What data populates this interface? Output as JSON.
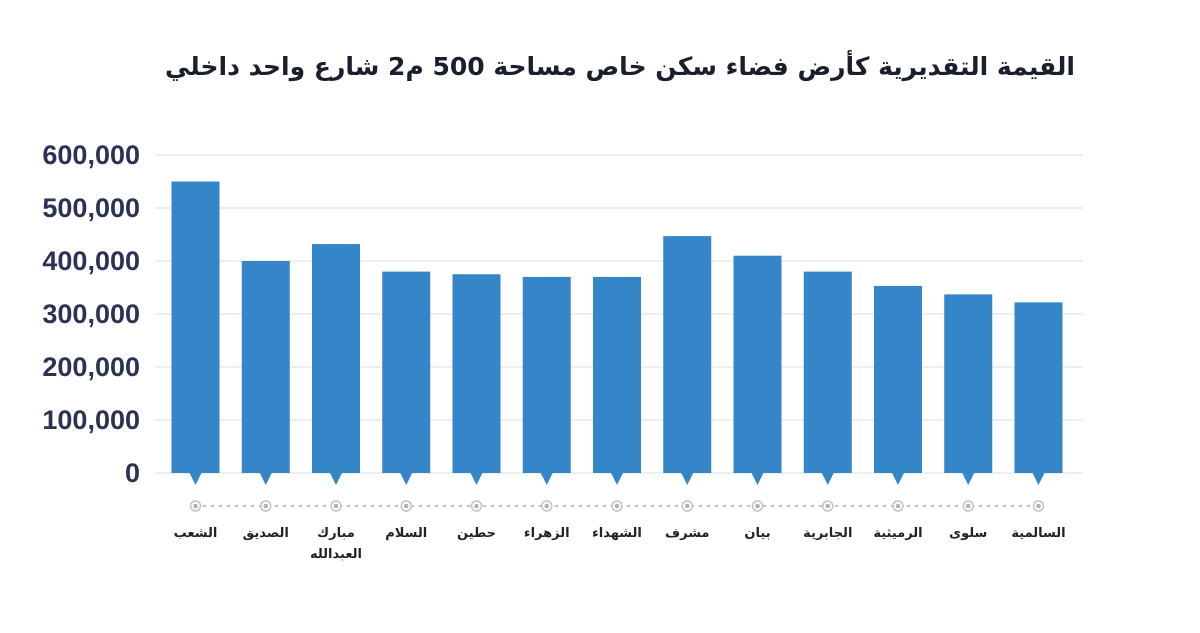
{
  "chart_data": {
    "type": "bar",
    "title": "القيمة التقديرية كأرض فضاء سكن خاص مساحة 500 م2 شارع واحد داخلي",
    "xlabel": "",
    "ylabel": "",
    "ylim": [
      0,
      600000
    ],
    "yticks": [
      "0",
      "100,000",
      "200,000",
      "300,000",
      "400,000",
      "500,000",
      "600,000"
    ],
    "categories": [
      [
        "الشعب"
      ],
      [
        "الصديق"
      ],
      [
        "مبارك",
        "العبدالله"
      ],
      [
        "السلام"
      ],
      [
        "حطين"
      ],
      [
        "الزهراء"
      ],
      [
        "الشهداء"
      ],
      [
        "مشرف"
      ],
      [
        "بيان"
      ],
      [
        "الجابرية"
      ],
      [
        "الرميثية"
      ],
      [
        "سلوى"
      ],
      [
        "السالمية"
      ]
    ],
    "values": [
      550000,
      400000,
      432000,
      380000,
      375000,
      370000,
      370000,
      447000,
      410000,
      380000,
      353000,
      337000,
      322000
    ],
    "grid": true,
    "colors": {
      "bar": "#3585c9",
      "grid": "#d9dde3",
      "axis_text": "#2a3354",
      "dots": "#bfc3c8"
    }
  }
}
